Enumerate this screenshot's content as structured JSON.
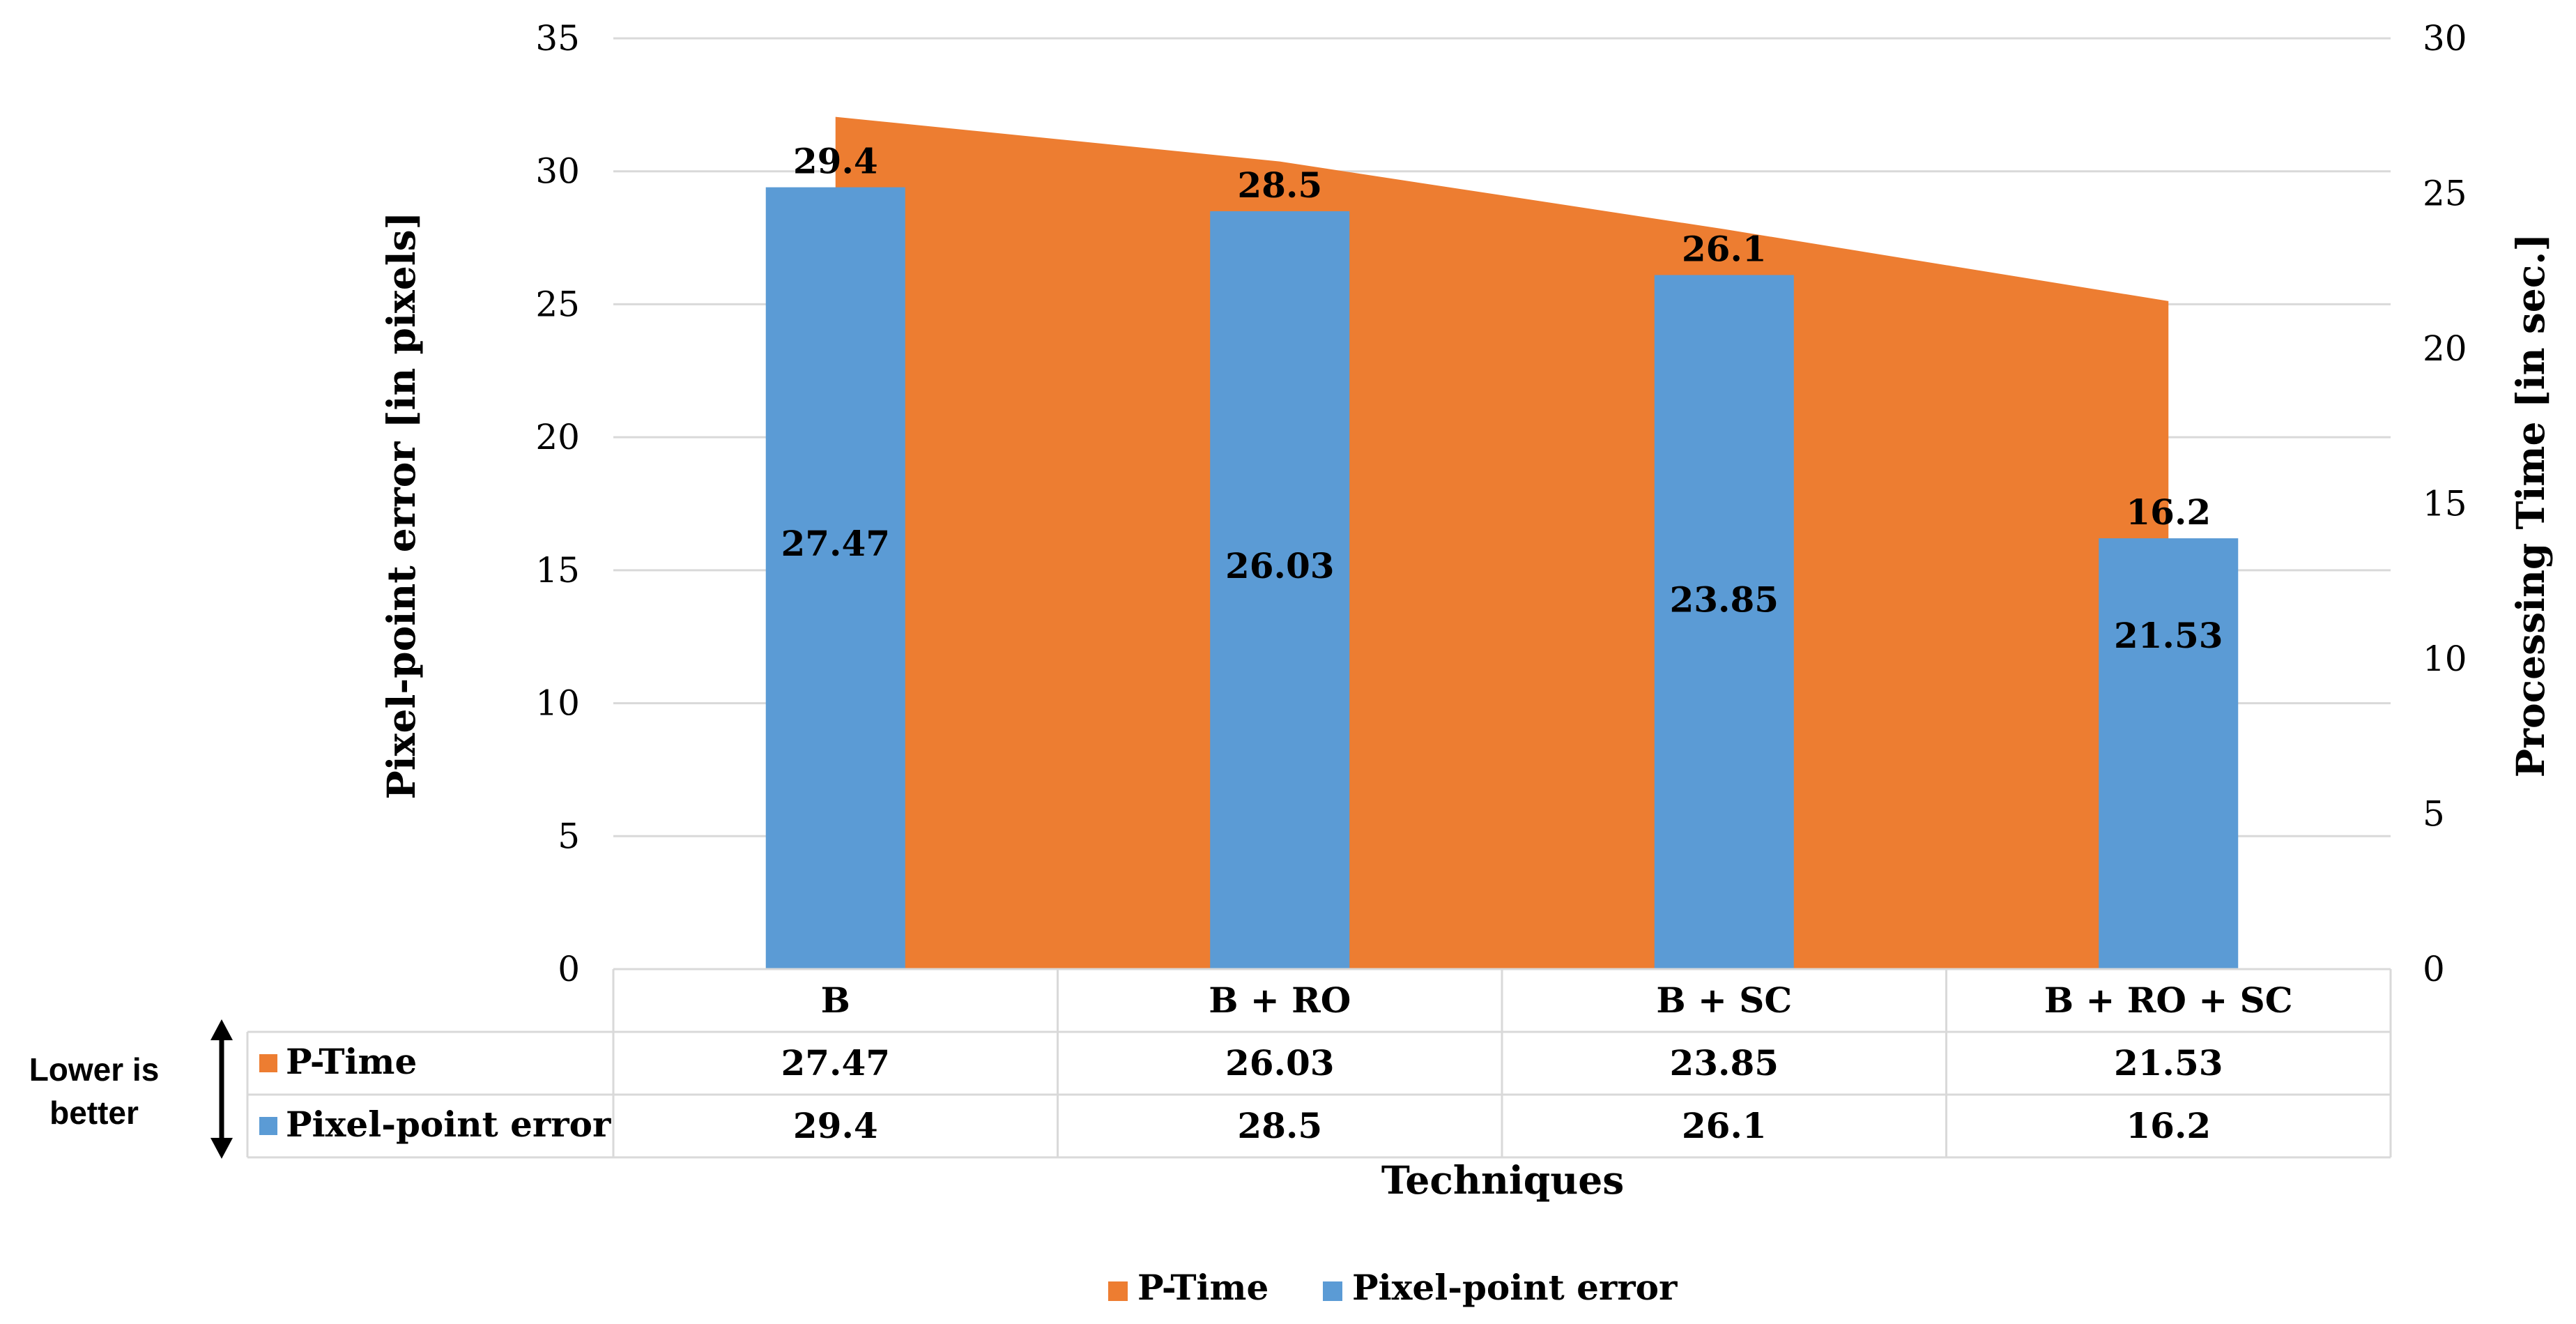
{
  "chart_data": {
    "type": "bar",
    "categories": [
      "B",
      "B + RO",
      "B + SC",
      "B + RO + SC"
    ],
    "series": [
      {
        "name": "P-Time",
        "kind": "area",
        "axis": "right",
        "color": "#ED7D31",
        "values": [
          27.47,
          26.03,
          23.85,
          21.53
        ]
      },
      {
        "name": "Pixel-point error",
        "kind": "bar",
        "axis": "left",
        "color": "#5B9BD5",
        "values": [
          29.4,
          28.5,
          26.1,
          16.2
        ]
      }
    ],
    "xlabel": "Techniques",
    "ylabel_left": "Pixel-point error [in pixels]",
    "ylabel_right": "Processing Time [in sec.]",
    "ylim_left": [
      0,
      35
    ],
    "ylim_right": [
      0,
      30
    ],
    "yticks_left": [
      "0",
      "5",
      "10",
      "15",
      "20",
      "25",
      "30",
      "35"
    ],
    "yticks_right": [
      "0",
      "5",
      "10",
      "15",
      "20",
      "25",
      "30"
    ],
    "grid": true,
    "data_table": true,
    "legend_position": "bottom",
    "annotation": {
      "line1": "Lower is",
      "line2": "better"
    }
  }
}
